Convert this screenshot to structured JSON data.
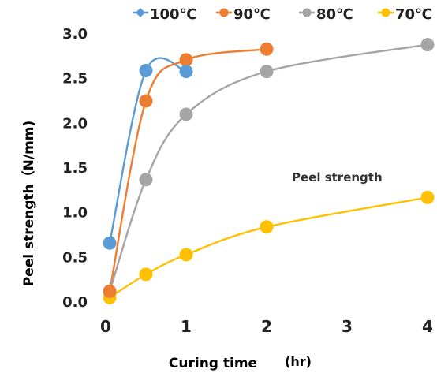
{
  "chart_data": {
    "type": "line",
    "xlabel": "Curing time",
    "xunit": "(hr)",
    "ylabel": "Peel strength（N/mm)",
    "annotation": "Peel strength",
    "xlim": [
      0,
      4
    ],
    "ylim": [
      0,
      3.0
    ],
    "x_ticks": [
      "0",
      "1",
      "2",
      "3",
      "4"
    ],
    "y_ticks": [
      "0.0",
      "0.5",
      "1.0",
      "1.5",
      "2.0",
      "2.5",
      "3.0"
    ],
    "grid": false,
    "legend_position": "top",
    "series": [
      {
        "name": "100℃",
        "color": "#5b9bd5",
        "marker": "diamond",
        "points": [
          [
            0.05,
            0.66
          ],
          [
            0.5,
            2.59
          ],
          [
            1.0,
            2.58
          ]
        ]
      },
      {
        "name": "90℃",
        "color": "#ed7d31",
        "marker": "circle",
        "points": [
          [
            0.05,
            0.12
          ],
          [
            0.5,
            2.25
          ],
          [
            1.0,
            2.71
          ],
          [
            2.0,
            2.83
          ]
        ]
      },
      {
        "name": "80℃",
        "color": "#a5a5a5",
        "marker": "circle",
        "points": [
          [
            0.05,
            0.12
          ],
          [
            0.5,
            1.37
          ],
          [
            1.0,
            2.1
          ],
          [
            2.0,
            2.58
          ],
          [
            4.0,
            2.88
          ]
        ]
      },
      {
        "name": "70℃",
        "color": "#ffc000",
        "marker": "circle",
        "points": [
          [
            0.05,
            0.05
          ],
          [
            0.5,
            0.31
          ],
          [
            1.0,
            0.53
          ],
          [
            2.0,
            0.84
          ],
          [
            4.0,
            1.17
          ]
        ]
      }
    ]
  }
}
